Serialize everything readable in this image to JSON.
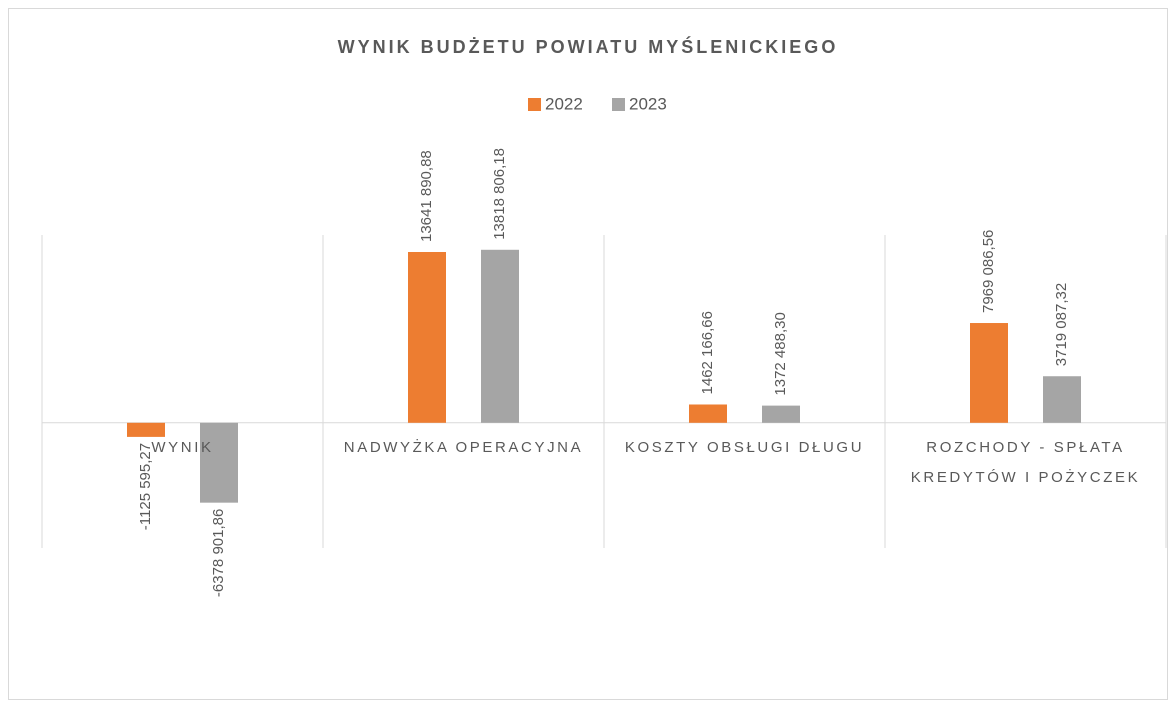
{
  "chart_data": {
    "type": "bar",
    "title": "WYNIK BUDŻETU POWIATU MYŚLENICKIEGO",
    "categories": [
      "WYNIK",
      "NADWYŻKA OPERACYJNA",
      "KOSZTY OBSŁUGI DŁUGU",
      "ROZCHODY - SPŁATA KREDYTÓW I POŻYCZEK"
    ],
    "series": [
      {
        "name": "2022",
        "color": "#ed7d31",
        "values": [
          -1125595.27,
          13641890.88,
          1462166.66,
          7969086.56
        ],
        "value_labels": [
          "-1125 595,27",
          "13641 890,88",
          "1462 166,66",
          "7969 086,56"
        ]
      },
      {
        "name": "2023",
        "color": "#a5a5a5",
        "values": [
          -6378901.86,
          13818806.18,
          1372488.3,
          3719087.32
        ],
        "value_labels": [
          "-6378 901,86",
          "13818 806,18",
          "1372 488,30",
          "3719 087,32"
        ]
      }
    ],
    "ylim": [
      -10000000,
      15000000
    ],
    "legend": "top"
  }
}
